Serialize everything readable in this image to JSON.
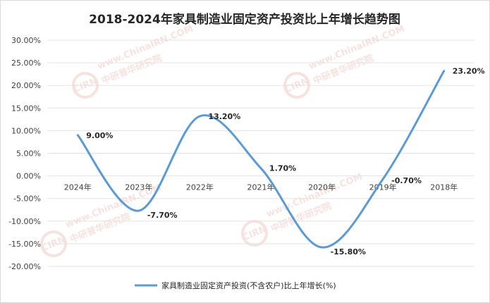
{
  "chart_data": {
    "type": "line",
    "title": "2018-2024年家具制造业固定资产投资比上年增长趋势图",
    "categories": [
      "2024年",
      "2023年",
      "2022年",
      "2021年",
      "2020年",
      "2019年",
      "2018年"
    ],
    "series": [
      {
        "name": "家具制造业固定资产投资(不含农户)比上年增长(%)",
        "values": [
          9.0,
          -7.7,
          13.2,
          1.7,
          -15.8,
          -0.7,
          23.2
        ],
        "labels": [
          "9.00%",
          "-7.70%",
          "13.20%",
          "1.70%",
          "-15.80%",
          "-0.70%",
          "23.20%"
        ],
        "color": "#5b9bd5"
      }
    ],
    "y_ticks": [
      "30.00%",
      "25.00%",
      "20.00%",
      "15.00%",
      "10.00%",
      "5.00%",
      "0.00%",
      "-5.00%",
      "-10.00%",
      "-15.00%",
      "-20.00%"
    ],
    "ylim": [
      -20,
      30
    ],
    "grid": true,
    "legend_position": "bottom",
    "xlabel": "",
    "ylabel": ""
  },
  "watermark": {
    "logo_text": "CIRN",
    "brand_text": "中研普华研究院",
    "url_text": "www.ChinaIRN.COM",
    "color": "#f3dad6"
  }
}
